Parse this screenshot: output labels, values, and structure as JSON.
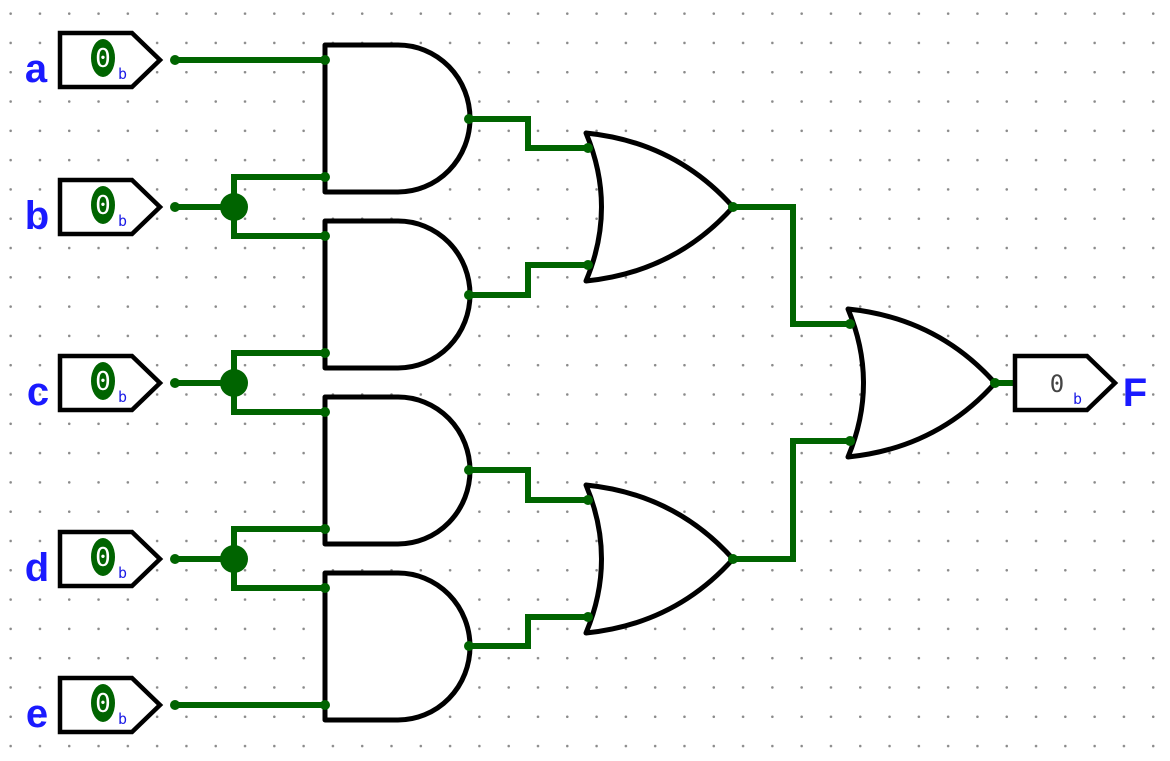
{
  "colors": {
    "wire": "#006400",
    "gate_stroke": "#000000",
    "label": "#1a1aff",
    "pin_oval": "#006400",
    "subscript": "#1a1ae6"
  },
  "inputs": [
    {
      "label": "a",
      "value": "0",
      "radix": "b"
    },
    {
      "label": "b",
      "value": "0",
      "radix": "b"
    },
    {
      "label": "c",
      "value": "0",
      "radix": "b"
    },
    {
      "label": "d",
      "value": "0",
      "radix": "b"
    },
    {
      "label": "e",
      "value": "0",
      "radix": "b"
    }
  ],
  "gates": [
    {
      "type": "AND",
      "inputs": [
        "a",
        "b"
      ]
    },
    {
      "type": "AND",
      "inputs": [
        "b",
        "c"
      ]
    },
    {
      "type": "AND",
      "inputs": [
        "c",
        "d"
      ]
    },
    {
      "type": "AND",
      "inputs": [
        "d",
        "e"
      ]
    },
    {
      "type": "OR",
      "inputs": [
        "AND1",
        "AND2"
      ]
    },
    {
      "type": "OR",
      "inputs": [
        "AND3",
        "AND4"
      ]
    },
    {
      "type": "OR",
      "inputs": [
        "OR1",
        "OR2"
      ]
    }
  ],
  "output": {
    "label": "F",
    "value": "0",
    "radix": "b"
  }
}
